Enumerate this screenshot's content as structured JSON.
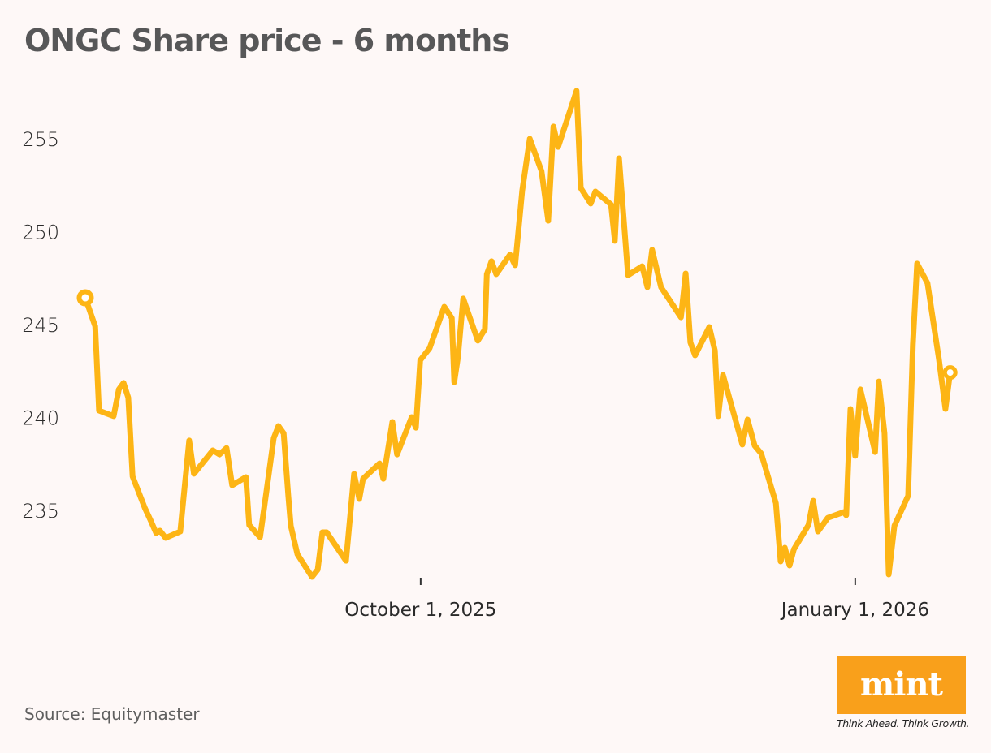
{
  "title": "ONGC Share price - 6 months",
  "source": "Source: Equitymaster",
  "logo": {
    "word": "mint",
    "tagline": "Think Ahead. Think Growth.",
    "color": "#F9A01B"
  },
  "colors": {
    "line": "#FDB515",
    "background": "#FEF8F7",
    "title": "#575758",
    "text": "#2a2a2a"
  },
  "chart_data": {
    "type": "line",
    "title": "ONGC Share price - 6 months",
    "xlabel": "",
    "ylabel": "",
    "y_ticks": [
      235,
      240,
      245,
      250,
      255
    ],
    "ylim": [
      230.6,
      258.5
    ],
    "x_ticks": [
      {
        "day": 71,
        "label": "October 1, 2025"
      },
      {
        "day": 163,
        "label": "January 1, 2026"
      }
    ],
    "xlim_days": [
      0,
      183.1
    ],
    "grid": false,
    "legend": null,
    "series": [
      {
        "name": "ONGC",
        "start_marker": true,
        "end_marker": true,
        "points": [
          [
            0,
            246.44
          ],
          [
            2.1,
            244.91
          ],
          [
            2.9,
            240.37
          ],
          [
            6.0,
            240.07
          ],
          [
            7.1,
            241.51
          ],
          [
            8.1,
            241.86
          ],
          [
            9.1,
            241.07
          ],
          [
            10.0,
            236.83
          ],
          [
            12.6,
            235.13
          ],
          [
            13.8,
            234.48
          ],
          [
            15.0,
            233.78
          ],
          [
            15.8,
            233.91
          ],
          [
            17.0,
            233.52
          ],
          [
            20.1,
            233.86
          ],
          [
            22.0,
            238.76
          ],
          [
            23.0,
            236.97
          ],
          [
            27.0,
            238.23
          ],
          [
            28.4,
            238.01
          ],
          [
            29.9,
            238.36
          ],
          [
            31.1,
            236.35
          ],
          [
            34.0,
            236.79
          ],
          [
            34.7,
            234.21
          ],
          [
            37.0,
            233.56
          ],
          [
            38.3,
            235.92
          ],
          [
            39.9,
            238.89
          ],
          [
            40.9,
            239.54
          ],
          [
            42.0,
            239.15
          ],
          [
            43.0,
            235.74
          ],
          [
            43.5,
            234.17
          ],
          [
            44.9,
            232.64
          ],
          [
            48.0,
            231.42
          ],
          [
            49.2,
            231.81
          ],
          [
            50.2,
            233.82
          ],
          [
            51.1,
            233.82
          ],
          [
            55.2,
            232.29
          ],
          [
            56.9,
            236.97
          ],
          [
            58.0,
            235.61
          ],
          [
            58.8,
            236.7
          ],
          [
            62.3,
            237.53
          ],
          [
            63.1,
            236.7
          ],
          [
            65.0,
            239.76
          ],
          [
            66.0,
            238.01
          ],
          [
            69.1,
            240.02
          ],
          [
            70.0,
            239.45
          ],
          [
            70.9,
            243.08
          ],
          [
            72.9,
            243.73
          ],
          [
            76.0,
            245.96
          ],
          [
            77.6,
            245.35
          ],
          [
            78.1,
            241.9
          ],
          [
            78.9,
            243.25
          ],
          [
            80.0,
            246.4
          ],
          [
            83.1,
            244.13
          ],
          [
            84.6,
            244.74
          ],
          [
            85.0,
            247.71
          ],
          [
            86.0,
            248.41
          ],
          [
            87.0,
            247.71
          ],
          [
            89.9,
            248.76
          ],
          [
            91.0,
            248.19
          ],
          [
            92.5,
            252.21
          ],
          [
            94.1,
            255.0
          ],
          [
            96.6,
            253.25
          ],
          [
            98.0,
            250.59
          ],
          [
            99.1,
            255.66
          ],
          [
            100.1,
            254.56
          ],
          [
            104.0,
            257.58
          ],
          [
            104.9,
            252.34
          ],
          [
            107.0,
            251.51
          ],
          [
            108.0,
            252.16
          ],
          [
            111.3,
            251.46
          ],
          [
            112.1,
            249.5
          ],
          [
            113.0,
            253.95
          ],
          [
            114.9,
            247.66
          ],
          [
            117.9,
            248.14
          ],
          [
            119.0,
            247.01
          ],
          [
            120.0,
            249.02
          ],
          [
            121.9,
            247.01
          ],
          [
            126.1,
            245.39
          ],
          [
            127.1,
            247.75
          ],
          [
            128.1,
            244.04
          ],
          [
            129.1,
            243.34
          ],
          [
            132.1,
            244.87
          ],
          [
            133.3,
            243.6
          ],
          [
            134.0,
            240.07
          ],
          [
            135.0,
            242.29
          ],
          [
            139.1,
            238.54
          ],
          [
            140.2,
            239.89
          ],
          [
            141.7,
            238.49
          ],
          [
            143.1,
            238.06
          ],
          [
            146.2,
            235.39
          ],
          [
            147.2,
            232.25
          ],
          [
            148.1,
            232.99
          ],
          [
            149.1,
            232.03
          ],
          [
            150.0,
            232.9
          ],
          [
            153.1,
            234.21
          ],
          [
            154.1,
            235.52
          ],
          [
            155.1,
            233.86
          ],
          [
            157.2,
            234.6
          ],
          [
            160.6,
            234.91
          ],
          [
            161.1,
            234.74
          ],
          [
            162.0,
            240.46
          ],
          [
            163.0,
            237.93
          ],
          [
            164.1,
            241.51
          ],
          [
            167.2,
            238.14
          ],
          [
            168.0,
            241.94
          ],
          [
            169.2,
            239.15
          ],
          [
            170.1,
            231.55
          ],
          [
            171.3,
            234.17
          ],
          [
            174.2,
            235.79
          ],
          [
            175.2,
            243.91
          ],
          [
            176.1,
            248.28
          ],
          [
            178.3,
            247.23
          ],
          [
            180.7,
            243.17
          ],
          [
            182.1,
            240.46
          ],
          [
            183.1,
            242.42
          ]
        ]
      }
    ]
  }
}
